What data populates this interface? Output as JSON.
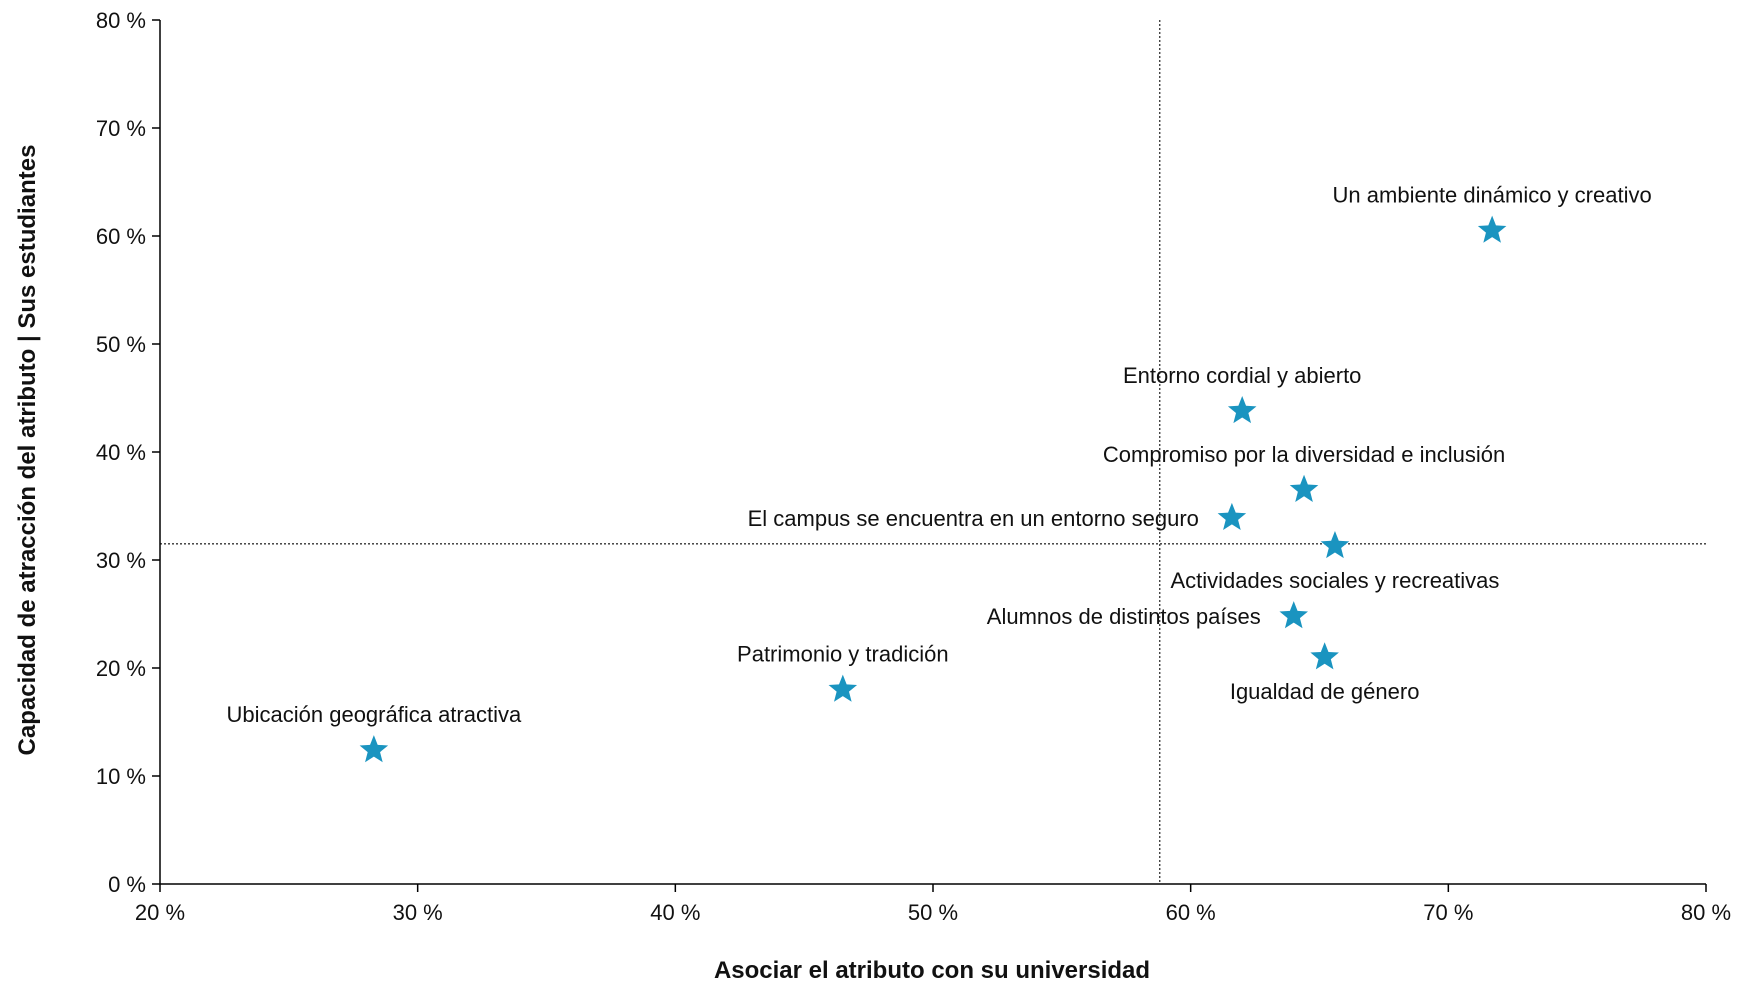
{
  "chart_data": {
    "type": "scatter",
    "title": "",
    "xlabel": "Asociar el atributo con su universidad",
    "ylabel": "Capacidad de atracción del atributo | Sus estudiantes",
    "xlim": [
      20,
      80
    ],
    "ylim": [
      0,
      80
    ],
    "x_ticks": [
      20,
      30,
      40,
      50,
      60,
      70,
      80
    ],
    "y_ticks": [
      0,
      10,
      20,
      30,
      40,
      50,
      60,
      70,
      80
    ],
    "tick_format": "{v} %",
    "grid": false,
    "marker": "star",
    "reference_lines": {
      "x": 58.8,
      "y": 31.5
    },
    "colors": {
      "marker": "#1a94c0",
      "axis": "#000000",
      "reference": "#333333"
    },
    "points": [
      {
        "label": "Un ambiente dinámico y creativo",
        "x": 71.7,
        "y": 60.5,
        "label_pos": "above"
      },
      {
        "label": "Entorno cordial y abierto",
        "x": 62.0,
        "y": 43.8,
        "label_pos": "above"
      },
      {
        "label": "Compromiso por la diversidad e inclusión",
        "x": 64.4,
        "y": 36.5,
        "label_pos": "above"
      },
      {
        "label": "El campus se encuentra en un entorno seguro",
        "x": 61.6,
        "y": 33.9,
        "label_pos": "left"
      },
      {
        "label": "Actividades sociales y recreativas",
        "x": 65.6,
        "y": 31.3,
        "label_pos": "below"
      },
      {
        "label": "Alumnos de distintos países",
        "x": 64.0,
        "y": 24.8,
        "label_pos": "left"
      },
      {
        "label": "Igualdad de género",
        "x": 65.2,
        "y": 21.0,
        "label_pos": "below"
      },
      {
        "label": "Patrimonio y tradición",
        "x": 46.5,
        "y": 18.0,
        "label_pos": "above"
      },
      {
        "label": "Ubicación geográfica atractiva",
        "x": 28.3,
        "y": 12.4,
        "label_pos": "above"
      }
    ]
  }
}
